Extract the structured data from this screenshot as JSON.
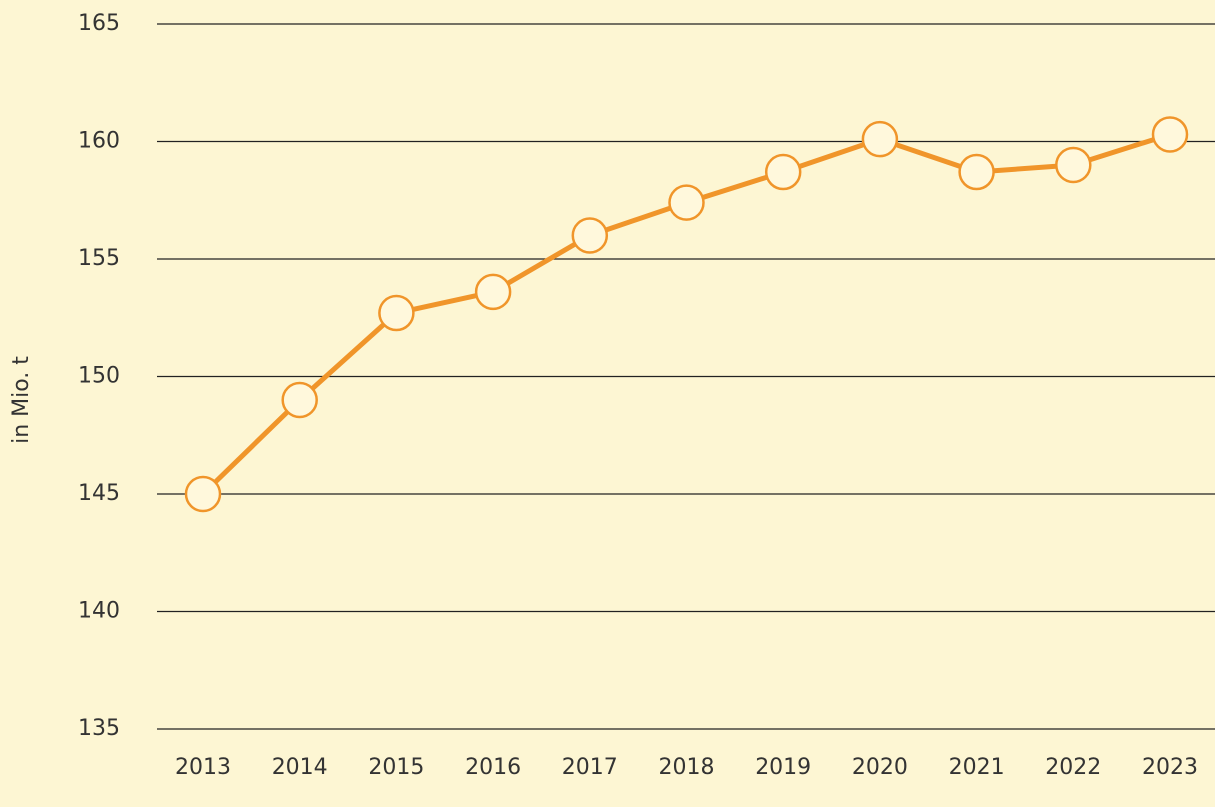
{
  "chart_data": {
    "type": "line",
    "y_label": "in Mio. t",
    "categories": [
      "2013",
      "2014",
      "2015",
      "2016",
      "2017",
      "2018",
      "2019",
      "2020",
      "2021",
      "2022",
      "2023"
    ],
    "values": [
      145.0,
      149.0,
      152.7,
      153.6,
      156.0,
      157.4,
      158.7,
      160.1,
      158.7,
      159.0,
      160.3
    ],
    "color": "#f0952a",
    "marker_fill": "#fff8dc",
    "ylim": [
      135,
      165
    ],
    "yticks": [
      135,
      140,
      145,
      150,
      155,
      160,
      165
    ],
    "grid": true
  }
}
